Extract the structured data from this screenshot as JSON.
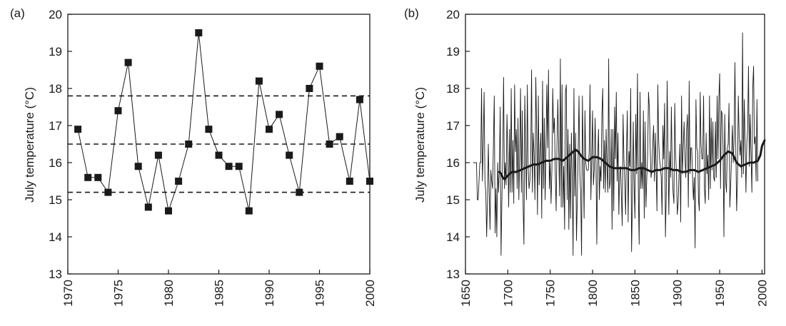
{
  "chart_data": [
    {
      "panel_label": "(a)",
      "type": "line",
      "ylabel": "July temperature (°C)",
      "xlabel": "",
      "xlim": [
        1970,
        2000
      ],
      "ylim": [
        13,
        20
      ],
      "x_ticks": [
        1970,
        1975,
        1980,
        1985,
        1990,
        1995,
        2000
      ],
      "y_ticks": [
        13,
        14,
        15,
        16,
        17,
        18,
        19,
        20
      ],
      "markers": "square",
      "x": [
        1971,
        1972,
        1973,
        1974,
        1975,
        1976,
        1977,
        1978,
        1979,
        1980,
        1981,
        1982,
        1983,
        1984,
        1985,
        1986,
        1987,
        1988,
        1989,
        1990,
        1991,
        1992,
        1993,
        1994,
        1995,
        1996,
        1997,
        1998,
        1999,
        2000
      ],
      "y": [
        16.9,
        15.6,
        15.6,
        15.2,
        17.4,
        18.7,
        15.9,
        14.8,
        16.2,
        14.7,
        15.5,
        16.5,
        19.5,
        16.9,
        16.2,
        15.9,
        15.9,
        14.7,
        18.2,
        16.9,
        17.3,
        16.2,
        15.2,
        18.0,
        18.6,
        16.5,
        16.7,
        15.5,
        17.7,
        15.5
      ],
      "reference_lines": [
        17.8,
        16.5,
        15.2
      ],
      "grid": false
    },
    {
      "panel_label": "(b)",
      "type": "line",
      "ylabel": "July temperature (°C)",
      "xlabel": "",
      "xlim": [
        1650,
        2003
      ],
      "ylim": [
        13,
        20
      ],
      "x_ticks": [
        1650,
        1700,
        1750,
        1800,
        1850,
        1900,
        1950,
        2000
      ],
      "y_ticks": [
        13,
        14,
        15,
        16,
        17,
        18,
        19,
        20
      ],
      "series": [
        {
          "style": "thin",
          "x_start": 1659,
          "x_step": 1,
          "values": [
            16,
            16,
            16,
            16,
            16,
            15,
            15,
            15.5,
            16,
            16,
            18,
            15.5,
            16.5,
            17.9,
            15.5,
            15.2,
            14,
            15,
            16.5,
            15.2,
            14.2,
            15.8,
            15.5,
            15.3,
            16.5,
            17.8,
            14.1,
            15.3,
            14,
            16,
            15.2,
            15.8,
            17.5,
            13.5,
            15,
            16.2,
            18.3,
            15.3,
            16,
            15.4,
            17.3,
            16.2,
            14.8,
            16.9,
            15.2,
            18,
            15.2,
            16.6,
            14.9,
            18.1,
            16.3,
            16.9,
            15.3,
            17.2,
            15,
            16.2,
            18,
            15.2,
            17.4,
            14.9,
            13.8,
            17.8,
            16.3,
            15,
            18.1,
            15.9,
            15.3,
            15.5,
            16.1,
            18.5,
            15.2,
            16.8,
            16.2,
            15,
            18.3,
            16.9,
            14.6,
            17.8,
            15.4,
            16.3,
            16.8,
            14.5,
            18.2,
            15.3,
            17.2,
            15,
            16.4,
            18.1,
            16.4,
            18.5,
            15.3,
            16,
            14.9,
            15.8,
            18,
            16.8,
            17.2,
            15.7,
            14.7,
            16.5,
            17.7,
            16.4,
            15.1,
            18.8,
            14.8,
            18.1,
            14.8,
            15.9,
            14.2,
            17.9,
            18.1,
            15,
            16.9,
            14.2,
            16.5,
            14.5,
            16.8,
            15.6,
            13.5,
            18,
            15.1,
            16.8,
            13.9,
            15,
            16.3,
            17.8,
            15.7,
            15.2,
            13.5,
            17.8,
            16,
            14.5,
            17.4,
            16,
            15.8,
            15.8,
            15.8,
            16.3,
            18.1,
            15,
            16.1,
            17.4,
            15.4,
            15.8,
            17.2,
            16,
            13.8,
            16.1,
            16.9,
            15,
            15.9,
            15.5,
            17.3,
            18,
            15.3,
            16.6,
            15.2,
            16.9,
            15.9,
            15.2,
            18.8,
            15.3,
            15.5,
            16.9,
            14.2,
            16.9,
            14.7,
            17.5,
            16.1,
            17.9,
            15.5,
            16.8,
            14.6,
            15.7,
            15.9,
            15.1,
            14.3,
            17.3,
            16.1,
            15.5,
            14.6,
            16.3,
            17.4,
            14.4,
            16.3,
            15.9,
            18,
            13.6,
            14.9,
            17.1,
            15.4,
            14.5,
            17.3,
            15.7,
            18.4,
            15.2,
            13.8,
            17.9,
            15.3,
            16,
            15.3,
            17.4,
            14.5,
            17.1,
            14.8,
            15.6,
            16.2,
            17.9,
            17.5,
            16.4,
            15.6,
            15.8,
            16.5,
            17,
            15.5,
            16.8,
            15.8,
            14.7,
            18.1,
            16.6,
            16.1,
            15.9,
            15.6,
            14.6,
            17,
            16.1,
            17.6,
            14,
            15.2,
            18.2,
            16.4,
            14.6,
            16.3,
            15.6,
            17.5,
            15.8,
            15.2,
            14.9,
            17.6,
            16.2,
            15.7,
            14.6,
            14.9,
            15.7,
            16.5,
            14.4,
            17.8,
            15.7,
            16.4,
            17.1,
            16.2,
            15.6,
            16.9,
            17.3,
            14.8,
            18.2,
            15.7,
            16.4,
            16.4,
            15.6,
            15,
            15.6,
            13.7,
            17.7,
            16.4,
            16.3,
            15,
            14.7,
            17.9,
            16.5,
            16.1,
            16.1,
            17.8,
            15.3,
            14.9,
            16.8,
            15.7,
            16.2,
            15,
            17.8,
            15.3,
            17.2,
            15.8,
            17.1,
            15.6,
            15.5,
            17.1,
            15.6,
            17.8,
            16.1,
            17.7,
            18.4,
            15.3,
            17.4,
            17.3,
            16.4,
            14,
            17.3,
            15.5,
            15.2,
            16.4,
            16.5,
            17.6,
            14.8,
            15.4,
            16.2,
            17,
            16,
            16.6,
            18.7,
            16.5,
            14.7,
            15.5,
            17.8,
            16.7,
            16.2,
            16.6,
            15.6,
            19.5,
            15.7,
            17.7,
            16.6,
            15.2,
            16.5,
            16.9,
            18.6,
            15.9,
            17.3,
            16.2,
            15.2,
            18,
            18.6,
            16.5,
            16.7,
            15.5,
            17.7,
            15.5
          ]
        },
        {
          "style": "smoothed",
          "x": [
            1690,
            1692,
            1694,
            1696,
            1698,
            1700,
            1702,
            1705,
            1710,
            1715,
            1720,
            1725,
            1730,
            1735,
            1740,
            1745,
            1750,
            1755,
            1760,
            1765,
            1770,
            1775,
            1780,
            1783,
            1786,
            1790,
            1795,
            1800,
            1805,
            1810,
            1815,
            1820,
            1825,
            1830,
            1835,
            1840,
            1845,
            1850,
            1855,
            1860,
            1865,
            1870,
            1875,
            1880,
            1885,
            1890,
            1895,
            1900,
            1905,
            1910,
            1915,
            1920,
            1925,
            1930,
            1935,
            1940,
            1945,
            1950,
            1955,
            1960,
            1965,
            1970,
            1975,
            1980,
            1985,
            1990,
            1995,
            1998,
            2000,
            2003
          ],
          "y": [
            15.75,
            15.7,
            15.6,
            15.55,
            15.6,
            15.65,
            15.7,
            15.75,
            15.75,
            15.8,
            15.85,
            15.9,
            15.95,
            15.95,
            16.0,
            16.05,
            16.05,
            16.1,
            16.1,
            16.05,
            16.15,
            16.25,
            16.35,
            16.3,
            16.2,
            16.1,
            16.05,
            16.15,
            16.15,
            16.1,
            16.0,
            15.9,
            15.85,
            15.85,
            15.85,
            15.85,
            15.8,
            15.8,
            15.85,
            15.85,
            15.8,
            15.75,
            15.8,
            15.8,
            15.85,
            15.85,
            15.8,
            15.8,
            15.75,
            15.75,
            15.8,
            15.8,
            15.75,
            15.8,
            15.85,
            15.9,
            15.95,
            16.05,
            16.2,
            16.3,
            16.25,
            16.0,
            15.9,
            15.95,
            16.0,
            16.0,
            16.05,
            16.2,
            16.45,
            16.6
          ]
        }
      ],
      "grid": false
    }
  ]
}
